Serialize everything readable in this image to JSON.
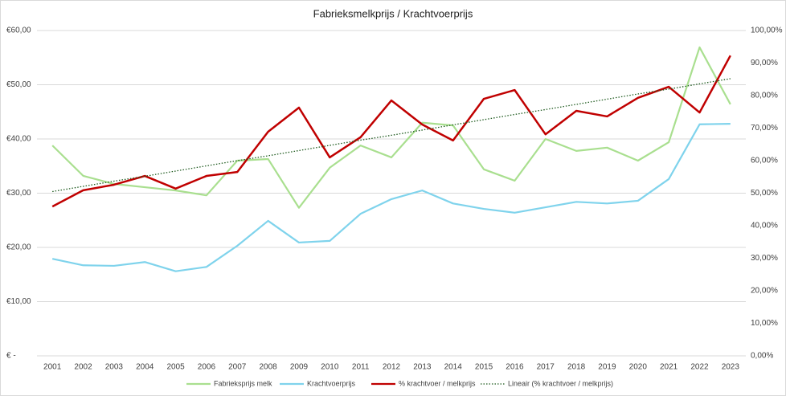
{
  "chart_data": {
    "type": "line",
    "title": "Fabrieksmelkprijs / Krachtvoerprijs",
    "categories": [
      "2001",
      "2002",
      "2003",
      "2004",
      "2005",
      "2006",
      "2007",
      "2008",
      "2009",
      "2010",
      "2011",
      "2012",
      "2013",
      "2014",
      "2015",
      "2016",
      "2017",
      "2018",
      "2019",
      "2020",
      "2021",
      "2022",
      "2023"
    ],
    "series": [
      {
        "name": "Fabrieksprijs melk",
        "color": "#a9df8f",
        "values": [
          38.8,
          33.2,
          31.7,
          31.1,
          30.5,
          29.6,
          36.0,
          36.3,
          27.3,
          34.7,
          38.8,
          36.6,
          43.0,
          42.5,
          34.4,
          32.3,
          40.0,
          37.8,
          38.4,
          36.0,
          39.4,
          56.9,
          46.4
        ]
      },
      {
        "name": "Krachtvoerprijs",
        "color": "#7fd3ec",
        "values": [
          17.9,
          16.7,
          16.6,
          17.3,
          15.6,
          16.4,
          20.3,
          24.9,
          20.9,
          21.2,
          26.2,
          28.9,
          30.5,
          28.1,
          27.1,
          26.4,
          27.4,
          28.4,
          28.1,
          28.6,
          32.6,
          42.7,
          42.8
        ]
      },
      {
        "name": "% krachtvoer / melkprijs",
        "color": "#c00000",
        "axis": "y2",
        "values": [
          45.9,
          50.9,
          52.6,
          55.3,
          51.4,
          55.3,
          56.5,
          68.9,
          76.3,
          61.0,
          67.2,
          78.5,
          71.1,
          66.2,
          79.0,
          81.7,
          68.1,
          75.3,
          73.6,
          79.3,
          82.7,
          74.8,
          92.3
        ]
      },
      {
        "name": "Lineair (% krachtvoer / melkprijs)",
        "color": "#1e5a1e",
        "axis": "y2",
        "style": "dotted",
        "values": [
          50.5,
          52.1,
          53.7,
          55.2,
          56.8,
          58.4,
          60.0,
          61.5,
          63.1,
          64.7,
          66.3,
          67.8,
          69.4,
          71.0,
          72.6,
          74.2,
          75.7,
          77.3,
          78.9,
          80.5,
          82.0,
          83.6,
          85.2
        ]
      }
    ],
    "ylim": [
      0,
      60
    ],
    "yticks": [
      {
        "value": 0,
        "label": "€ -"
      },
      {
        "value": 10,
        "label": "€10,00"
      },
      {
        "value": 20,
        "label": "€20,00"
      },
      {
        "value": 30,
        "label": "€30,00"
      },
      {
        "value": 40,
        "label": "€40,00"
      },
      {
        "value": 50,
        "label": "€50,00"
      },
      {
        "value": 60,
        "label": "€60,00"
      }
    ],
    "y2lim": [
      0,
      100
    ],
    "y2ticks": [
      {
        "value": 0,
        "label": "0,00%"
      },
      {
        "value": 10,
        "label": "10,00%"
      },
      {
        "value": 20,
        "label": "20,00%"
      },
      {
        "value": 30,
        "label": "30,00%"
      },
      {
        "value": 40,
        "label": "40,00%"
      },
      {
        "value": 50,
        "label": "50,00%"
      },
      {
        "value": 60,
        "label": "60,00%"
      },
      {
        "value": 70,
        "label": "70,00%"
      },
      {
        "value": 80,
        "label": "80,00%"
      },
      {
        "value": 90,
        "label": "90,00%"
      },
      {
        "value": 100,
        "label": "100,00%"
      }
    ],
    "grid": true,
    "legend": "bottom"
  }
}
